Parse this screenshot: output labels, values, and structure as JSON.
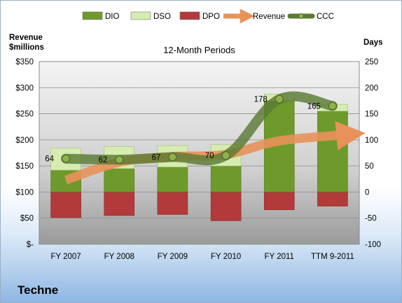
{
  "company": "Techne",
  "chart_data": {
    "type": "bar",
    "title": "12-Month Periods",
    "categories": [
      "FY 2007",
      "FY 2008",
      "FY 2009",
      "FY 2010",
      "FY 2011",
      "TTM 9-2011"
    ],
    "left_axis": {
      "label_lines": [
        "Revenue",
        "$millions"
      ],
      "range": [
        0,
        350
      ],
      "ticks": [
        0,
        50,
        100,
        150,
        200,
        250,
        300,
        350
      ],
      "tick_labels": [
        "$-",
        "$50",
        "$100",
        "$150",
        "$200",
        "$250",
        "$300",
        "$350"
      ]
    },
    "right_axis": {
      "label": "Days",
      "range": [
        -100,
        250
      ],
      "ticks": [
        -100,
        -50,
        0,
        50,
        100,
        150,
        200,
        250
      ]
    },
    "legend": {
      "placement": "top",
      "items": [
        {
          "name": "DIO",
          "kind": "bar",
          "color": "#6e9a2c"
        },
        {
          "name": "DSO",
          "kind": "bar",
          "color": "#d6ecb0"
        },
        {
          "name": "DPO",
          "kind": "bar",
          "color": "#b23a3a"
        },
        {
          "name": "Revenue",
          "kind": "arrow",
          "color": "#e8925a"
        },
        {
          "name": "CCC",
          "kind": "line",
          "color": "#5b7a34"
        }
      ]
    },
    "series": [
      {
        "name": "DIO",
        "axis": "days",
        "color": "#6e9a2c",
        "values": [
          42,
          45,
          48,
          50,
          175,
          155
        ]
      },
      {
        "name": "DSO",
        "axis": "days",
        "color": "#d6ecb0",
        "values": [
          42,
          42,
          41,
          41,
          13,
          13
        ]
      },
      {
        "name": "DPO",
        "axis": "days",
        "color": "#b23a3a",
        "values": [
          -49,
          -45,
          -43,
          -55,
          -34,
          -27
        ]
      },
      {
        "name": "Revenue",
        "axis": "revenue",
        "color": "#e8925a",
        "values": [
          123,
          157,
          168,
          172,
          198,
          210
        ]
      },
      {
        "name": "CCC",
        "axis": "days",
        "color": "#5b7a34",
        "values": [
          64,
          62,
          67,
          70,
          178,
          165
        ]
      }
    ],
    "grid": true
  }
}
